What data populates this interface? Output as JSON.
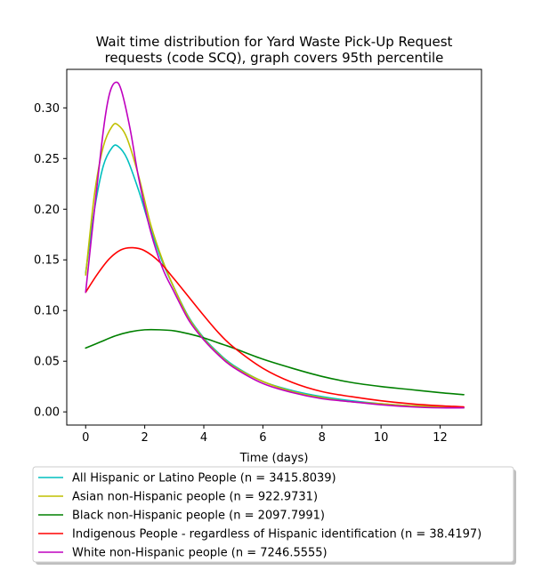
{
  "chart_data": {
    "type": "line",
    "title_line1": "Wait time distribution  for Yard Waste Pick-Up Request",
    "title_line2": "requests (code SCQ), graph covers 95th percentile",
    "xlabel": "Time (days)",
    "ylabel": "",
    "xlim": [
      -0.64,
      13.4
    ],
    "ylim": [
      -0.013,
      0.338
    ],
    "xticks": [
      0,
      2,
      4,
      6,
      8,
      10,
      12
    ],
    "yticks": [
      0.0,
      0.05,
      0.1,
      0.15,
      0.2,
      0.25,
      0.3
    ],
    "xtick_labels": [
      "0",
      "2",
      "4",
      "6",
      "8",
      "10",
      "12"
    ],
    "ytick_labels": [
      "0.00",
      "0.05",
      "0.10",
      "0.15",
      "0.20",
      "0.25",
      "0.30"
    ],
    "grid": false,
    "legend_position": "below",
    "series": [
      {
        "name": "All Hispanic or Latino People (n = 3415.8039)",
        "color": "#00bfbf",
        "x": [
          0,
          0.3,
          0.6,
          0.9,
          1.1,
          1.4,
          1.8,
          2.2,
          2.6,
          3.0,
          3.5,
          4.0,
          4.5,
          5.0,
          6.0,
          7.0,
          8.0,
          9.0,
          10.0,
          11.0,
          12.0,
          12.8
        ],
        "y": [
          0.137,
          0.2,
          0.243,
          0.261,
          0.262,
          0.25,
          0.218,
          0.18,
          0.148,
          0.122,
          0.093,
          0.073,
          0.058,
          0.046,
          0.03,
          0.021,
          0.015,
          0.011,
          0.008,
          0.006,
          0.005,
          0.004
        ]
      },
      {
        "name": "Asian non-Hispanic people (n = 922.9731)",
        "color": "#bfbf00",
        "x": [
          0,
          0.3,
          0.6,
          0.9,
          1.1,
          1.4,
          1.8,
          2.2,
          2.6,
          3.0,
          3.5,
          4.0,
          4.5,
          5.0,
          6.0,
          7.0,
          8.0,
          9.0,
          10.0,
          11.0,
          12.0,
          12.8
        ],
        "y": [
          0.135,
          0.215,
          0.262,
          0.282,
          0.283,
          0.27,
          0.232,
          0.185,
          0.15,
          0.122,
          0.092,
          0.072,
          0.057,
          0.045,
          0.03,
          0.02,
          0.014,
          0.01,
          0.008,
          0.006,
          0.005,
          0.004
        ]
      },
      {
        "name": "Black non-Hispanic people (n = 2097.7991)",
        "color": "#008000",
        "x": [
          0,
          0.5,
          1.0,
          1.5,
          2.0,
          2.5,
          3.0,
          3.5,
          4.0,
          4.5,
          5.0,
          6.0,
          7.0,
          8.0,
          9.0,
          10.0,
          11.0,
          12.0,
          12.8
        ],
        "y": [
          0.063,
          0.069,
          0.075,
          0.079,
          0.081,
          0.081,
          0.08,
          0.077,
          0.073,
          0.068,
          0.063,
          0.052,
          0.043,
          0.035,
          0.029,
          0.025,
          0.022,
          0.019,
          0.017
        ]
      },
      {
        "name": "Indigenous People - regardless of Hispanic identification (n = 38.4197)",
        "color": "#ff0000",
        "x": [
          0,
          0.4,
          0.8,
          1.2,
          1.6,
          2.0,
          2.5,
          3.0,
          3.5,
          4.0,
          4.5,
          5.0,
          6.0,
          7.0,
          8.0,
          9.0,
          10.0,
          11.0,
          12.0,
          12.8
        ],
        "y": [
          0.118,
          0.136,
          0.151,
          0.16,
          0.162,
          0.159,
          0.148,
          0.131,
          0.113,
          0.095,
          0.078,
          0.064,
          0.043,
          0.029,
          0.02,
          0.015,
          0.011,
          0.008,
          0.006,
          0.005
        ]
      },
      {
        "name": "White non-Hispanic people (n = 7246.5555)",
        "color": "#bf00bf",
        "x": [
          0,
          0.3,
          0.6,
          0.8,
          1.0,
          1.2,
          1.5,
          1.8,
          2.2,
          2.6,
          3.0,
          3.5,
          4.0,
          4.5,
          5.0,
          6.0,
          7.0,
          8.0,
          9.0,
          10.0,
          11.0,
          12.0,
          12.8
        ],
        "y": [
          0.118,
          0.2,
          0.278,
          0.313,
          0.325,
          0.318,
          0.28,
          0.23,
          0.178,
          0.142,
          0.118,
          0.09,
          0.071,
          0.056,
          0.044,
          0.028,
          0.019,
          0.013,
          0.01,
          0.007,
          0.005,
          0.004,
          0.004
        ]
      }
    ]
  }
}
